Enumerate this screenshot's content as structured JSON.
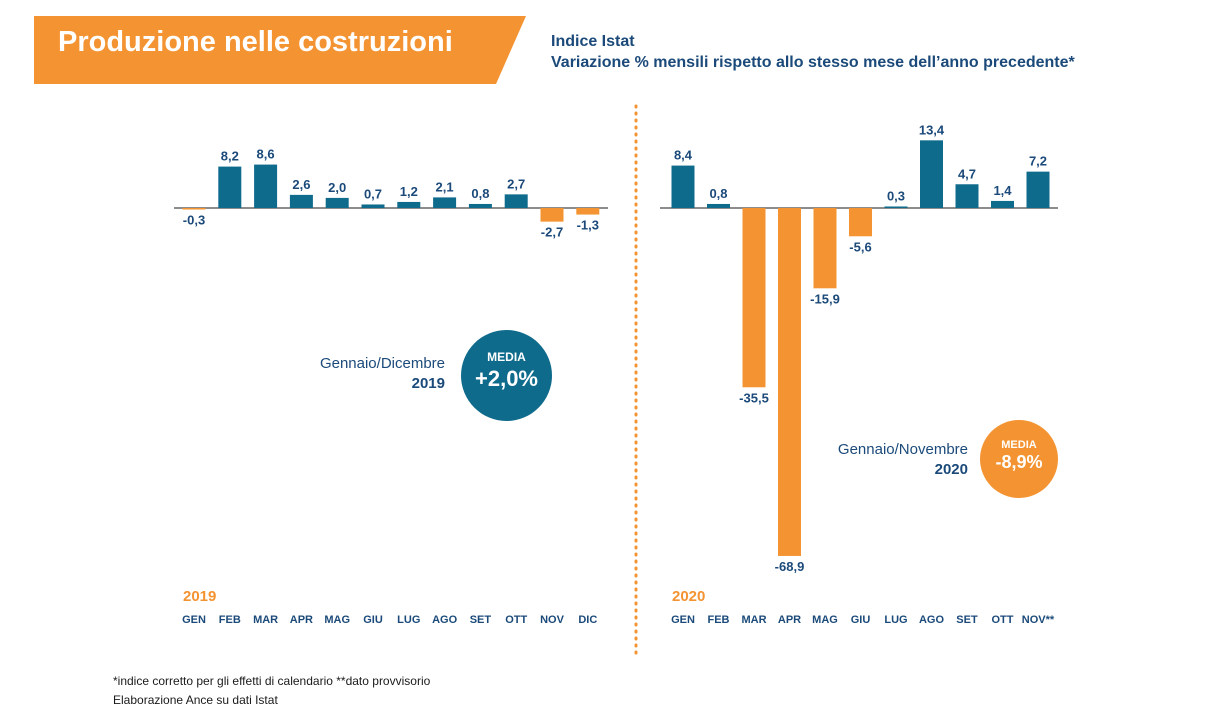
{
  "header": {
    "title": "Produzione nelle costruzioni",
    "subtitle_line1": "Indice Istat",
    "subtitle_line2": "Variazione % mensili rispetto allo stesso mese dell’anno precedente*"
  },
  "colors": {
    "positive": "#0f6b8c",
    "negative": "#f49331",
    "text": "#1b4a7a",
    "banner": "#f49331"
  },
  "chart_data": [
    {
      "type": "bar",
      "year_label": "2019",
      "categories": [
        "GEN",
        "FEB",
        "MAR",
        "APR",
        "MAG",
        "GIU",
        "LUG",
        "AGO",
        "SET",
        "OTT",
        "NOV",
        "DIC"
      ],
      "values": [
        -0.3,
        8.2,
        8.6,
        2.6,
        2.0,
        0.7,
        1.2,
        2.1,
        0.8,
        2.7,
        -2.7,
        -1.3
      ],
      "value_labels": [
        "-0,3",
        "8,2",
        "8,6",
        "2,6",
        "2,0",
        "0,7",
        "1,2",
        "2,1",
        "0,8",
        "2,7",
        "-2,7",
        "-1,3"
      ]
    },
    {
      "type": "bar",
      "year_label": "2020",
      "categories": [
        "GEN",
        "FEB",
        "MAR",
        "APR",
        "MAG",
        "GIU",
        "LUG",
        "AGO",
        "SET",
        "OTT",
        "NOV**"
      ],
      "values": [
        8.4,
        0.8,
        -35.5,
        -68.9,
        -15.9,
        -5.6,
        0.3,
        13.4,
        4.7,
        1.4,
        7.2
      ],
      "value_labels": [
        "8,4",
        "0,8",
        "-35,5",
        "-68,9",
        "-15,9",
        "-5,6",
        "0,3",
        "13,4",
        "4,7",
        "1,4",
        "7,2"
      ]
    }
  ],
  "averages": {
    "y2019": {
      "period": "Gennaio/Dicembre",
      "year": "2019",
      "badge_title": "MEDIA",
      "badge_value": "+2,0%"
    },
    "y2020": {
      "period": "Gennaio/Novembre",
      "year": "2020",
      "badge_title": "MEDIA",
      "badge_value": "-8,9%"
    }
  },
  "footnotes": {
    "line1": "*indice corretto per gli effetti di calendario   **dato provvisorio",
    "line2": "Elaborazione Ance su dati Istat"
  }
}
